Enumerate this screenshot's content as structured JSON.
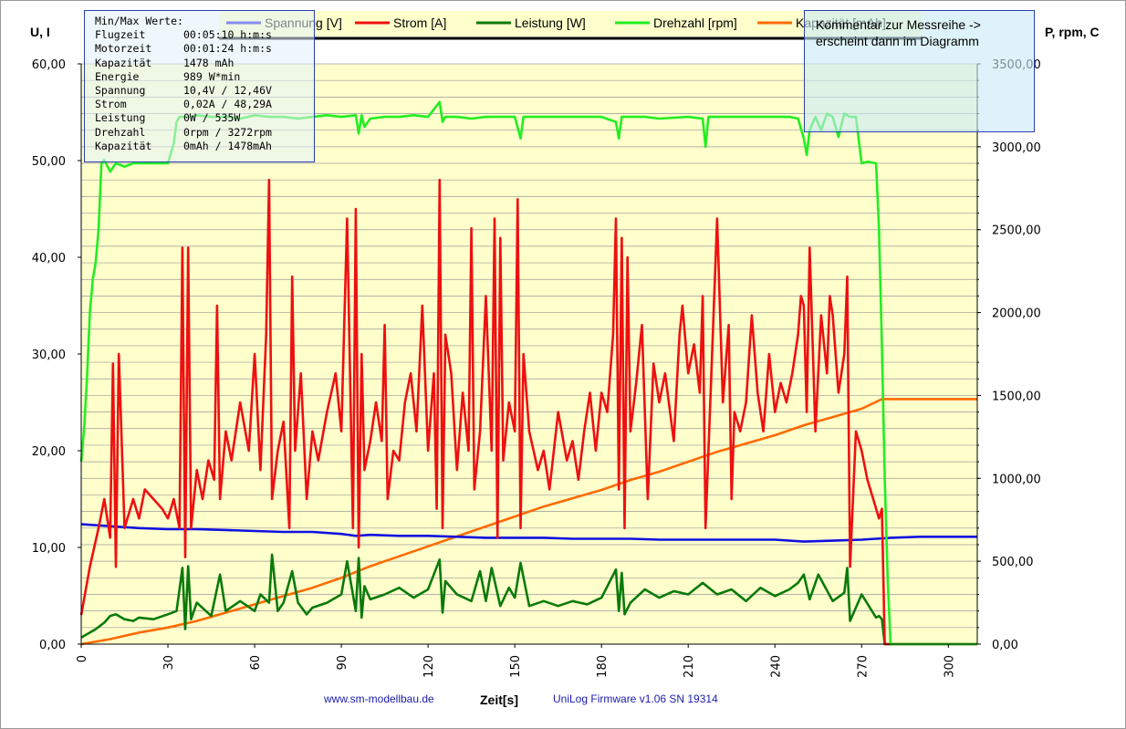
{
  "chart_data": {
    "type": "line",
    "xlabel": "Zeit[s]",
    "y_left_label": "U, I",
    "y_right_label": "P, rpm, C",
    "xlim": [
      0,
      310
    ],
    "xticks": [
      0,
      30,
      60,
      90,
      120,
      150,
      180,
      210,
      240,
      270,
      300
    ],
    "ylim_left": [
      0,
      60
    ],
    "yticks_left": [
      "0,00",
      "10,00",
      "20,00",
      "30,00",
      "40,00",
      "50,00",
      "60,00"
    ],
    "ylim_right": [
      0,
      3500
    ],
    "yticks_right": [
      "0,00",
      "500,00",
      "1000,00",
      "1500,00",
      "2000,00",
      "2500,00",
      "3000,00",
      "3500,00"
    ],
    "grid": true,
    "legend_position": "top",
    "series": [
      {
        "name": "Spannung [V]",
        "axis": "left",
        "color": "#1010e0",
        "x": [
          0,
          10,
          20,
          30,
          40,
          50,
          60,
          70,
          80,
          90,
          95,
          100,
          110,
          120,
          130,
          140,
          150,
          160,
          170,
          180,
          190,
          200,
          210,
          220,
          230,
          240,
          250,
          260,
          270,
          275,
          280,
          290,
          300,
          310
        ],
        "y": [
          12.4,
          12.2,
          12.0,
          11.9,
          11.9,
          11.8,
          11.7,
          11.6,
          11.6,
          11.4,
          11.2,
          11.3,
          11.2,
          11.2,
          11.1,
          11.0,
          11.0,
          11.0,
          10.9,
          10.9,
          10.9,
          10.8,
          10.8,
          10.8,
          10.8,
          10.8,
          10.6,
          10.7,
          10.8,
          10.9,
          11.0,
          11.1,
          11.1,
          11.1
        ]
      },
      {
        "name": "Strom [A]",
        "axis": "left",
        "color": "#ee1010",
        "x": [
          0,
          3,
          6,
          8,
          10,
          11,
          12,
          13,
          15,
          18,
          20,
          22,
          25,
          28,
          30,
          32,
          34,
          35,
          36,
          37,
          38,
          40,
          42,
          44,
          46,
          47,
          48,
          50,
          52,
          55,
          58,
          60,
          62,
          64,
          65,
          66,
          68,
          70,
          72,
          73,
          74,
          76,
          78,
          80,
          82,
          85,
          88,
          90,
          92,
          94,
          95,
          96,
          97,
          98,
          100,
          102,
          104,
          105,
          106,
          108,
          110,
          112,
          114,
          116,
          118,
          120,
          122,
          123,
          124,
          125,
          126,
          128,
          130,
          132,
          134,
          135,
          136,
          138,
          140,
          142,
          143,
          144,
          145,
          146,
          148,
          150,
          151,
          152,
          153,
          155,
          158,
          160,
          162,
          165,
          168,
          170,
          172,
          174,
          176,
          178,
          180,
          182,
          184,
          185,
          186,
          187,
          188,
          189,
          190,
          192,
          194,
          196,
          198,
          200,
          202,
          205,
          207,
          208,
          210,
          212,
          214,
          215,
          216,
          218,
          220,
          222,
          224,
          225,
          226,
          228,
          230,
          232,
          234,
          236,
          238,
          240,
          242,
          244,
          246,
          248,
          249,
          250,
          251,
          252,
          254,
          256,
          258,
          259,
          260,
          262,
          264,
          265,
          266,
          268,
          270,
          272,
          274,
          276,
          277,
          278,
          280,
          290,
          300,
          310
        ],
        "y": [
          3,
          8,
          12,
          15,
          11,
          29,
          8,
          30,
          12,
          15,
          13,
          16,
          15,
          14,
          13,
          15,
          12,
          41,
          9,
          41,
          12,
          18,
          15,
          19,
          17,
          35,
          15,
          22,
          19,
          25,
          20,
          30,
          18,
          32,
          48,
          15,
          20,
          23,
          12,
          38,
          20,
          28,
          15,
          22,
          19,
          24,
          28,
          22,
          44,
          12,
          45,
          10,
          30,
          18,
          21,
          25,
          21,
          33,
          15,
          20,
          19,
          25,
          28,
          22,
          35,
          20,
          28,
          14,
          48,
          12,
          32,
          28,
          18,
          26,
          20,
          43,
          16,
          22,
          36,
          20,
          44,
          11,
          42,
          19,
          25,
          22,
          46,
          12,
          30,
          22,
          18,
          20,
          16,
          24,
          19,
          21,
          17,
          22,
          26,
          20,
          26,
          24,
          32,
          44,
          16,
          42,
          12,
          40,
          22,
          27,
          33,
          15,
          29,
          25,
          28,
          21,
          32,
          35,
          28,
          31,
          26,
          36,
          12,
          28,
          44,
          25,
          33,
          15,
          24,
          22,
          25,
          34,
          26,
          22,
          30,
          24,
          27,
          25,
          28,
          32,
          36,
          35,
          24,
          41,
          22,
          34,
          28,
          36,
          34,
          26,
          30,
          38,
          8,
          22,
          20,
          17,
          15,
          13,
          14,
          0,
          0,
          0,
          0,
          0
        ]
      },
      {
        "name": "Leistung [W]",
        "axis": "right",
        "color": "#0a7a0a",
        "x": [
          0,
          5,
          8,
          10,
          12,
          15,
          18,
          20,
          25,
          30,
          33,
          35,
          36,
          37,
          38,
          40,
          45,
          48,
          50,
          55,
          60,
          62,
          65,
          66,
          68,
          70,
          73,
          75,
          78,
          80,
          85,
          90,
          92,
          95,
          96,
          97,
          98,
          100,
          105,
          110,
          115,
          120,
          124,
          125,
          126,
          130,
          135,
          138,
          140,
          142,
          145,
          148,
          150,
          152,
          155,
          160,
          165,
          170,
          175,
          180,
          185,
          186,
          187,
          188,
          190,
          195,
          200,
          205,
          210,
          215,
          220,
          225,
          230,
          235,
          240,
          245,
          248,
          250,
          252,
          255,
          260,
          264,
          265,
          266,
          270,
          275,
          276,
          277,
          278,
          280,
          290,
          300,
          310
        ],
        "y": [
          40,
          90,
          130,
          170,
          180,
          150,
          140,
          160,
          150,
          180,
          200,
          460,
          90,
          470,
          150,
          250,
          170,
          420,
          200,
          260,
          200,
          300,
          250,
          540,
          200,
          250,
          440,
          250,
          180,
          220,
          250,
          300,
          500,
          200,
          520,
          160,
          350,
          270,
          300,
          340,
          280,
          330,
          510,
          190,
          380,
          300,
          260,
          440,
          260,
          460,
          230,
          340,
          280,
          490,
          230,
          260,
          230,
          260,
          240,
          280,
          450,
          200,
          430,
          180,
          250,
          330,
          280,
          320,
          300,
          370,
          300,
          330,
          260,
          340,
          290,
          330,
          370,
          420,
          270,
          420,
          260,
          310,
          460,
          140,
          300,
          160,
          170,
          150,
          0,
          0,
          0,
          0,
          0
        ]
      },
      {
        "name": "Drehzahl [rpm]",
        "axis": "right",
        "color": "#22ee22",
        "x": [
          0,
          1,
          2,
          3,
          4,
          5,
          6,
          7,
          8,
          10,
          12,
          15,
          18,
          22,
          26,
          30,
          32,
          33,
          34,
          36,
          38,
          40,
          45,
          50,
          55,
          60,
          65,
          70,
          75,
          80,
          85,
          90,
          95,
          96,
          97,
          98,
          100,
          105,
          110,
          115,
          120,
          124,
          125,
          126,
          130,
          135,
          140,
          145,
          150,
          152,
          153,
          154,
          160,
          170,
          180,
          185,
          186,
          187,
          190,
          195,
          200,
          210,
          215,
          216,
          217,
          220,
          230,
          240,
          245,
          248,
          250,
          251,
          252,
          254,
          256,
          258,
          260,
          262,
          264,
          266,
          268,
          270,
          272,
          275,
          276,
          277,
          278,
          279,
          280,
          281,
          282,
          290,
          300,
          310
        ],
        "y": [
          1100,
          1300,
          1600,
          2000,
          2200,
          2300,
          2500,
          2900,
          2920,
          2850,
          2900,
          2880,
          2900,
          2900,
          2900,
          2900,
          3020,
          3150,
          3180,
          3180,
          3180,
          3190,
          3180,
          3180,
          3170,
          3190,
          3180,
          3180,
          3170,
          3180,
          3190,
          3180,
          3190,
          3080,
          3190,
          3120,
          3170,
          3180,
          3180,
          3190,
          3180,
          3270,
          3150,
          3180,
          3180,
          3170,
          3180,
          3180,
          3180,
          3050,
          3180,
          3180,
          3180,
          3180,
          3180,
          3150,
          3050,
          3180,
          3180,
          3180,
          3170,
          3180,
          3170,
          3000,
          3180,
          3180,
          3180,
          3180,
          3180,
          3170,
          3050,
          2950,
          3100,
          3180,
          3100,
          3200,
          3180,
          3060,
          3200,
          3180,
          3180,
          2900,
          2910,
          2900,
          2500,
          1800,
          1000,
          400,
          0,
          0,
          0,
          0,
          0,
          0
        ]
      },
      {
        "name": "Kapazität [mAh]",
        "axis": "right",
        "color": "#ff6a00",
        "x": [
          0,
          10,
          20,
          30,
          40,
          50,
          60,
          70,
          80,
          90,
          100,
          110,
          120,
          130,
          140,
          150,
          160,
          170,
          180,
          190,
          200,
          210,
          220,
          230,
          240,
          250,
          260,
          270,
          277,
          280,
          290,
          300,
          310
        ],
        "y": [
          0,
          30,
          70,
          100,
          140,
          190,
          240,
          290,
          340,
          400,
          470,
          530,
          590,
          650,
          710,
          770,
          830,
          880,
          930,
          990,
          1040,
          1100,
          1160,
          1210,
          1260,
          1320,
          1370,
          1420,
          1478,
          1478,
          1478,
          1478,
          1478
        ]
      }
    ]
  },
  "info_box": {
    "title": "Min/Max Werte:",
    "rows": [
      {
        "key": "Flugzeit",
        "value": "00:05:10 h:m:s"
      },
      {
        "key": "Motorzeit",
        "value": "00:01:24 h:m:s"
      },
      {
        "key": "Kapazität",
        "value": "1478 mAh"
      },
      {
        "key": "Energie",
        "value": "989 W*min"
      },
      {
        "key": "Spannung",
        "value": "10,4V / 12,46V"
      },
      {
        "key": "Strom",
        "value": "0,02A / 48,29A"
      },
      {
        "key": "Leistung",
        "value": "0W / 535W"
      },
      {
        "key": "Drehzahl",
        "value": "0rpm / 3272rpm"
      },
      {
        "key": "Kapazität",
        "value": "0mAh / 1478mAh"
      }
    ]
  },
  "comment_box": {
    "line1": "Kommentar zur Messreihe ->",
    "line2": "erscheint dann im Diagramm"
  },
  "footer": {
    "website": "www.sm-modellbau.de",
    "firmware": "UniLog Firmware  v1.06 SN 19314"
  },
  "colors": {
    "plot_background": "#ffffcc",
    "grid": "#9a9a9a"
  }
}
